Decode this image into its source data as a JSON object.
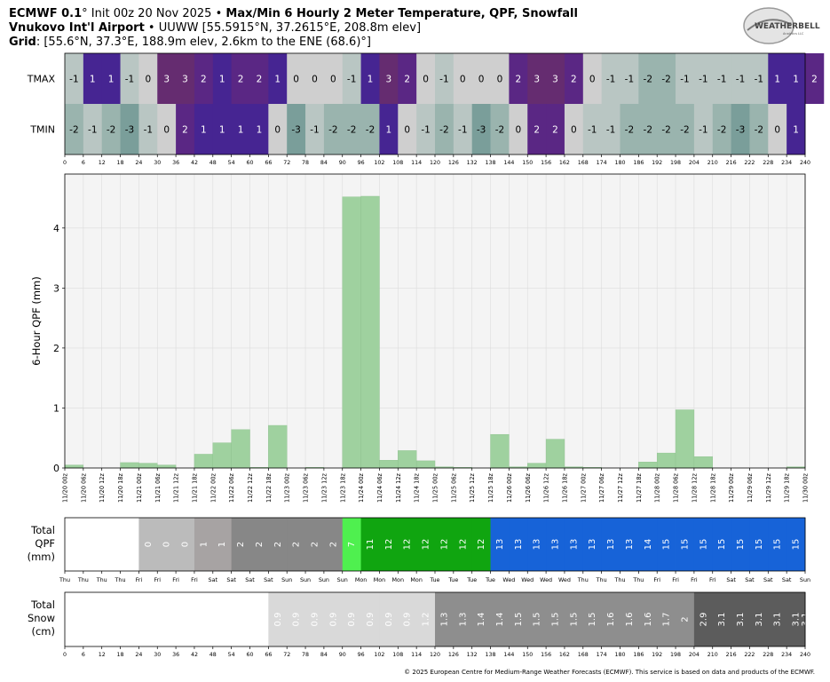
{
  "header": {
    "line1_model": "ECMWF 0.1",
    "line1_init": "° Init 00z 20 Nov 2025 • ",
    "line1_title": "Max/Min 6 Hourly 2 Meter Temperature,  QPF,  Snowfall",
    "line2_station": "Vnukovo Int'l Airport",
    "line2_details": " • UUWW [55.5915°N, 37.2615°E, 208.8m elev]",
    "line3_label": "Grid",
    "line3_details": ": [55.6°N, 37.3°E, 188.9m elev, 2.6km to the ENE (68.6)°]"
  },
  "logo": {
    "name": "WEATHERBELL",
    "tagline": "Analytics LLC"
  },
  "footer": "© 2025 European Centre for Medium-Range Weather Forecasts (ECMWF). This service is based on data and products of the ECMWF.",
  "colors": {
    "qpf_bar": "#9fd19f",
    "plot_bg": "#f4f4f4",
    "grid": "#dcdcdc"
  },
  "chart_data": {
    "type": "bar",
    "hours": [
      0,
      6,
      12,
      18,
      24,
      30,
      36,
      42,
      48,
      54,
      60,
      66,
      72,
      78,
      84,
      90,
      96,
      102,
      108,
      114,
      120,
      126,
      132,
      138,
      144,
      150,
      156,
      162,
      168,
      174,
      180,
      186,
      192,
      198,
      204,
      210,
      216,
      222,
      228,
      234,
      240
    ],
    "datetimes": [
      "11/20 00z",
      "11/20 06z",
      "11/20 12z",
      "11/20 18z",
      "11/21 00z",
      "11/21 06z",
      "11/21 12z",
      "11/21 18z",
      "11/22 00z",
      "11/22 06z",
      "11/22 12z",
      "11/22 18z",
      "11/23 00z",
      "11/23 06z",
      "11/23 12z",
      "11/23 18z",
      "11/24 00z",
      "11/24 06z",
      "11/24 12z",
      "11/24 18z",
      "11/25 00z",
      "11/25 06z",
      "11/25 12z",
      "11/25 18z",
      "11/26 00z",
      "11/26 06z",
      "11/26 12z",
      "11/26 18z",
      "11/27 00z",
      "11/27 06z",
      "11/27 12z",
      "11/27 18z",
      "11/28 00z",
      "11/28 06z",
      "11/28 12z",
      "11/28 18z",
      "11/29 00z",
      "11/29 06z",
      "11/29 12z",
      "11/29 18z",
      "11/30 00z"
    ],
    "weekdays": [
      "Thu",
      "Thu",
      "Thu",
      "Thu",
      "Fri",
      "Fri",
      "Fri",
      "Fri",
      "Sat",
      "Sat",
      "Sat",
      "Sat",
      "Sun",
      "Sun",
      "Sun",
      "Sun",
      "Mon",
      "Mon",
      "Mon",
      "Mon",
      "Tue",
      "Tue",
      "Tue",
      "Tue",
      "Wed",
      "Wed",
      "Wed",
      "Wed",
      "Thu",
      "Thu",
      "Thu",
      "Thu",
      "Fri",
      "Fri",
      "Fri",
      "Fri",
      "Sat",
      "Sat",
      "Sat",
      "Sat",
      "Sun"
    ],
    "tmax": {
      "label": "TMAX",
      "values": [
        -1,
        1,
        1,
        -1,
        0,
        3,
        3,
        2,
        1,
        2,
        2,
        1,
        0,
        0,
        0,
        -1,
        1,
        3,
        2,
        0,
        -1,
        0,
        0,
        0,
        2,
        3,
        3,
        2,
        0,
        -1,
        -1,
        -2,
        -2,
        -1,
        -1,
        -1,
        -1,
        -1,
        1,
        1,
        2
      ]
    },
    "tmin": {
      "label": "TMIN",
      "values": [
        -2,
        -1,
        -2,
        -3,
        -1,
        0,
        2,
        1,
        1,
        1,
        1,
        0,
        -3,
        -1,
        -2,
        -2,
        -2,
        1,
        0,
        -1,
        -2,
        -1,
        -3,
        -2,
        0,
        2,
        2,
        0,
        -1,
        -1,
        -2,
        -2,
        -2,
        -2,
        -1,
        -2,
        -3,
        -2,
        0,
        1,
        null
      ]
    },
    "qpf": {
      "ylabel": "6-Hour QPF (mm)",
      "ylim": [
        0,
        4.9
      ],
      "yticks": [
        0,
        1,
        2,
        3,
        4
      ],
      "values": [
        0.05,
        0,
        0,
        0.09,
        0.08,
        0.05,
        0,
        0.23,
        0.42,
        0.64,
        0.01,
        0.71,
        0,
        0.01,
        0,
        4.52,
        4.53,
        0.13,
        0.29,
        0.12,
        0.02,
        0.01,
        0,
        0.56,
        0.02,
        0.08,
        0.48,
        0.02,
        0.01,
        0,
        0,
        0.1,
        0.25,
        0.97,
        0.19,
        0,
        0,
        0,
        0,
        0.02
      ]
    },
    "total_qpf": {
      "label": [
        "Total",
        "QPF",
        "(mm)"
      ],
      "values": [
        "",
        "",
        "",
        "",
        "0",
        "0",
        "0",
        "1",
        "1",
        "2",
        "2",
        "2",
        "2",
        "2",
        "2",
        "7",
        "11",
        "12",
        "12",
        "12",
        "12",
        "12",
        "12",
        "13",
        "13",
        "13",
        "13",
        "13",
        "13",
        "13",
        "13",
        "14",
        "15",
        "15",
        "15",
        "15",
        "15",
        "15",
        "15",
        "15"
      ]
    },
    "total_snow": {
      "label": [
        "Total",
        "Snow",
        "(cm)"
      ],
      "values": [
        "",
        "",
        "",
        "",
        "",
        "",
        "",
        "",
        "",
        "",
        "",
        "0.9",
        "0.9",
        "0.9",
        "0.9",
        "0.9",
        "0.9",
        "0.9",
        "0.9",
        "1.2",
        "1.3",
        "1.3",
        "1.4",
        "1.4",
        "1.5",
        "1.5",
        "1.5",
        "1.5",
        "1.5",
        "1.6",
        "1.6",
        "1.6",
        "1.7",
        "2",
        "2.9",
        "3.1",
        "3.1",
        "3.1",
        "3.1",
        "3.1",
        "3.1"
      ]
    }
  }
}
